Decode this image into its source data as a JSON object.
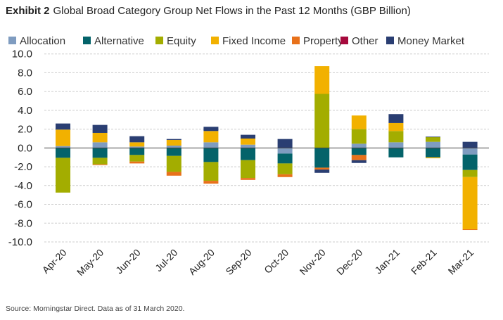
{
  "chart_data": {
    "type": "bar",
    "stacked": true,
    "title_prefix": "Exhibit 2",
    "title": "Global Broad Category Group Net Flows in the Past 12 Months (GBP Billion)",
    "source": "Source: Morningstar Direct. Data as of 31 March 2020.",
    "xlabel": "",
    "ylabel": "",
    "ylim": [
      -10,
      10
    ],
    "yticks": [
      "10.0",
      "8.0",
      "6.0",
      "4.0",
      "2.0",
      "0.0",
      "-2.0",
      "-4.0",
      "-6.0",
      "-8.0",
      "-10.0"
    ],
    "ytick_values": [
      10,
      8,
      6,
      4,
      2,
      0,
      -2,
      -4,
      -6,
      -8,
      -10
    ],
    "grid": true,
    "legend_position": "top",
    "categories": [
      "Apr-20",
      "May-20",
      "Jun-20",
      "Jul-20",
      "Aug-20",
      "Sep-20",
      "Oct-20",
      "Nov-20",
      "Dec-20",
      "Jan-21",
      "Feb-21",
      "Mar-21"
    ],
    "series": [
      {
        "name": "Allocation",
        "color": "#7f9cc0",
        "values": [
          0.2,
          0.6,
          0.15,
          0.25,
          0.6,
          0.35,
          -0.6,
          0,
          0.45,
          0.6,
          0.65,
          -0.7
        ]
      },
      {
        "name": "Alternative",
        "color": "#04636a",
        "values": [
          -1.05,
          -1.05,
          -0.75,
          -0.85,
          -1.5,
          -1.3,
          -1.05,
          -2.1,
          -0.75,
          -1.0,
          -1.0,
          -1.65
        ]
      },
      {
        "name": "Equity",
        "color": "#a3ad00",
        "values": [
          -3.7,
          -0.7,
          -0.7,
          -1.7,
          -2.0,
          -1.9,
          -1.15,
          5.75,
          1.55,
          1.2,
          0.5,
          -0.75
        ]
      },
      {
        "name": "Fixed Income",
        "color": "#f2b100",
        "values": [
          1.75,
          1.0,
          0.45,
          0.6,
          1.2,
          0.65,
          0,
          2.95,
          1.45,
          0.85,
          -0.1,
          -5.55
        ]
      },
      {
        "name": "Property",
        "color": "#e8711a",
        "values": [
          0,
          -0.08,
          -0.2,
          -0.4,
          -0.3,
          -0.2,
          -0.3,
          -0.2,
          -0.55,
          0,
          0,
          -0.08
        ]
      },
      {
        "name": "Other",
        "color": "#a6093d",
        "values": [
          0,
          0,
          0,
          0,
          0,
          0,
          0,
          0,
          0,
          0,
          0,
          0
        ]
      },
      {
        "name": "Money Market",
        "color": "#2a3e72",
        "values": [
          0.65,
          0.85,
          0.65,
          0.1,
          0.45,
          0.4,
          0.95,
          -0.35,
          -0.3,
          0.95,
          0.05,
          0.65
        ]
      }
    ]
  }
}
